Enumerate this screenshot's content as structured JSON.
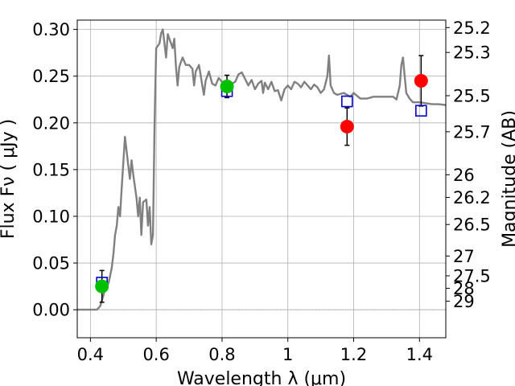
{
  "chart_data": {
    "type": "line",
    "title": "",
    "xlabel": "Wavelength  λ (μm)",
    "ylabel": "Flux  Fν  ( μJy )",
    "y2label": "Magnitude (AB)",
    "xlim": [
      0.36,
      1.48
    ],
    "ylim": [
      -0.03,
      0.31
    ],
    "grid": true,
    "x_ticks": [
      0.4,
      0.6,
      0.8,
      1.0,
      1.2,
      1.4
    ],
    "x_tick_labels": [
      "0.4",
      "0.6",
      "0.8",
      "1",
      "1.2",
      "1.4"
    ],
    "y_ticks": [
      0.0,
      0.05,
      0.1,
      0.15,
      0.2,
      0.25,
      0.3
    ],
    "y_tick_labels": [
      "0.00",
      "0.05",
      "0.10",
      "0.15",
      "0.20",
      "0.25",
      "0.30"
    ],
    "y2_ticks": [
      {
        "label": "25.2",
        "flux": 0.302
      },
      {
        "label": "25.3",
        "flux": 0.2754
      },
      {
        "label": "25.5",
        "flux": 0.2291
      },
      {
        "label": "25.7",
        "flux": 0.1905
      },
      {
        "label": "26",
        "flux": 0.1445
      },
      {
        "label": "26.2",
        "flux": 0.1202
      },
      {
        "label": "26.5",
        "flux": 0.0912
      },
      {
        "label": "27",
        "flux": 0.0575
      },
      {
        "label": "27.5",
        "flux": 0.0363
      },
      {
        "label": "28",
        "flux": 0.0229
      },
      {
        "label": "29",
        "flux": 0.0091
      }
    ],
    "series": [
      {
        "name": "model SED",
        "kind": "line",
        "color": "#808080",
        "points": [
          [
            0.36,
            0.0
          ],
          [
            0.42,
            0.0
          ],
          [
            0.43,
            0.004
          ],
          [
            0.44,
            0.016
          ],
          [
            0.445,
            0.024
          ],
          [
            0.455,
            0.028
          ],
          [
            0.465,
            0.045
          ],
          [
            0.47,
            0.06
          ],
          [
            0.475,
            0.08
          ],
          [
            0.48,
            0.09
          ],
          [
            0.485,
            0.11
          ],
          [
            0.49,
            0.1
          ],
          [
            0.495,
            0.13
          ],
          [
            0.505,
            0.185
          ],
          [
            0.51,
            0.17
          ],
          [
            0.52,
            0.14
          ],
          [
            0.525,
            0.16
          ],
          [
            0.53,
            0.145
          ],
          [
            0.54,
            0.12
          ],
          [
            0.545,
            0.1
          ],
          [
            0.55,
            0.12
          ],
          [
            0.555,
            0.08
          ],
          [
            0.56,
            0.115
          ],
          [
            0.57,
            0.118
          ],
          [
            0.575,
            0.09
          ],
          [
            0.58,
            0.11
          ],
          [
            0.585,
            0.07
          ],
          [
            0.59,
            0.08
          ],
          [
            0.595,
            0.2
          ],
          [
            0.6,
            0.28
          ],
          [
            0.61,
            0.285
          ],
          [
            0.615,
            0.296
          ],
          [
            0.62,
            0.3
          ],
          [
            0.625,
            0.285
          ],
          [
            0.63,
            0.27
          ],
          [
            0.635,
            0.295
          ],
          [
            0.64,
            0.29
          ],
          [
            0.645,
            0.285
          ],
          [
            0.65,
            0.28
          ],
          [
            0.655,
            0.29
          ],
          [
            0.66,
            0.26
          ],
          [
            0.665,
            0.24
          ],
          [
            0.67,
            0.26
          ],
          [
            0.675,
            0.265
          ],
          [
            0.68,
            0.27
          ],
          [
            0.69,
            0.262
          ],
          [
            0.7,
            0.262
          ],
          [
            0.71,
            0.258
          ],
          [
            0.715,
            0.24
          ],
          [
            0.72,
            0.255
          ],
          [
            0.73,
            0.262
          ],
          [
            0.74,
            0.24
          ],
          [
            0.745,
            0.23
          ],
          [
            0.75,
            0.245
          ],
          [
            0.76,
            0.255
          ],
          [
            0.77,
            0.242
          ],
          [
            0.78,
            0.24
          ],
          [
            0.79,
            0.248
          ],
          [
            0.8,
            0.244
          ],
          [
            0.81,
            0.236
          ],
          [
            0.82,
            0.24
          ],
          [
            0.83,
            0.242
          ],
          [
            0.84,
            0.244
          ],
          [
            0.85,
            0.252
          ],
          [
            0.86,
            0.254
          ],
          [
            0.87,
            0.247
          ],
          [
            0.88,
            0.24
          ],
          [
            0.89,
            0.246
          ],
          [
            0.9,
            0.236
          ],
          [
            0.91,
            0.242
          ],
          [
            0.92,
            0.245
          ],
          [
            0.925,
            0.232
          ],
          [
            0.93,
            0.243
          ],
          [
            0.94,
            0.236
          ],
          [
            0.95,
            0.244
          ],
          [
            0.96,
            0.234
          ],
          [
            0.97,
            0.235
          ],
          [
            0.98,
            0.224
          ],
          [
            0.99,
            0.236
          ],
          [
            1.0,
            0.24
          ],
          [
            1.01,
            0.236
          ],
          [
            1.02,
            0.244
          ],
          [
            1.03,
            0.242
          ],
          [
            1.04,
            0.238
          ],
          [
            1.05,
            0.244
          ],
          [
            1.06,
            0.24
          ],
          [
            1.07,
            0.236
          ],
          [
            1.08,
            0.241
          ],
          [
            1.09,
            0.238
          ],
          [
            1.1,
            0.232
          ],
          [
            1.11,
            0.236
          ],
          [
            1.12,
            0.25
          ],
          [
            1.125,
            0.272
          ],
          [
            1.13,
            0.24
          ],
          [
            1.14,
            0.232
          ],
          [
            1.15,
            0.23
          ],
          [
            1.17,
            0.232
          ],
          [
            1.19,
            0.228
          ],
          [
            1.2,
            0.232
          ],
          [
            1.22,
            0.226
          ],
          [
            1.24,
            0.226
          ],
          [
            1.26,
            0.228
          ],
          [
            1.28,
            0.228
          ],
          [
            1.3,
            0.228
          ],
          [
            1.32,
            0.228
          ],
          [
            1.33,
            0.225
          ],
          [
            1.34,
            0.24
          ],
          [
            1.345,
            0.262
          ],
          [
            1.35,
            0.27
          ],
          [
            1.355,
            0.25
          ],
          [
            1.36,
            0.232
          ],
          [
            1.37,
            0.226
          ],
          [
            1.38,
            0.222
          ],
          [
            1.4,
            0.222
          ],
          [
            1.42,
            0.221
          ],
          [
            1.44,
            0.22
          ],
          [
            1.46,
            0.22
          ],
          [
            1.48,
            0.219
          ]
        ]
      },
      {
        "name": "model photometry",
        "kind": "open-square",
        "color": "#0000cc",
        "x": [
          0.435,
          0.815,
          1.18,
          1.405
        ],
        "y": [
          0.029,
          0.234,
          0.223,
          0.213
        ]
      },
      {
        "name": "observed (green)",
        "kind": "filled-circle",
        "color": "#00c000",
        "x": [
          0.435,
          0.815
        ],
        "y": [
          0.025,
          0.239
        ],
        "err": [
          0.017,
          0.012
        ]
      },
      {
        "name": "observed (red)",
        "kind": "filled-circle",
        "color": "#ff0000",
        "x": [
          1.18,
          1.405
        ],
        "y": [
          0.196,
          0.245
        ],
        "err": [
          0.02,
          0.027
        ]
      }
    ]
  }
}
